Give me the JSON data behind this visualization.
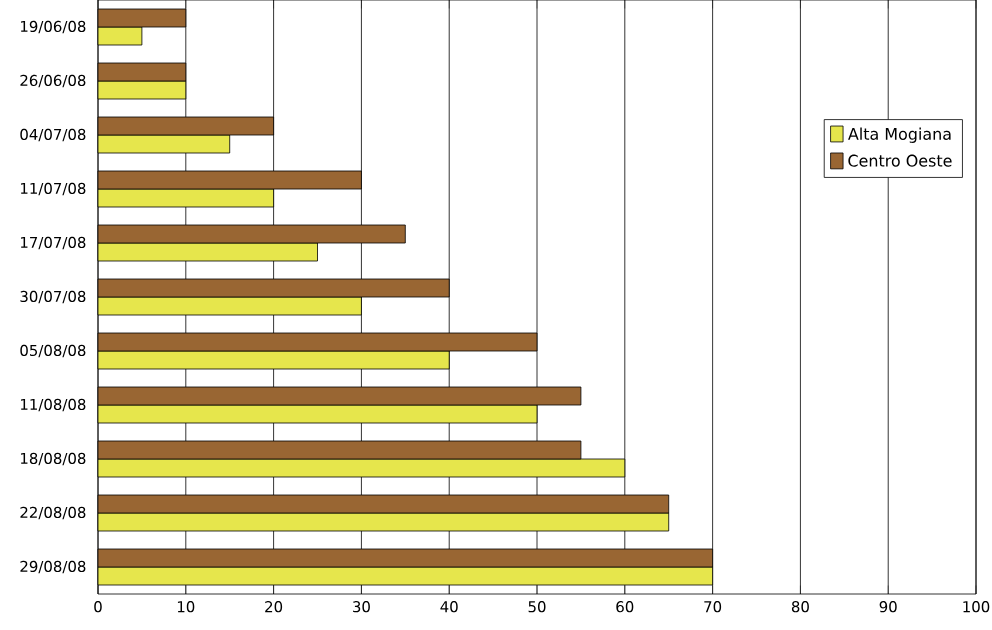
{
  "chart_data": {
    "type": "bar",
    "orientation": "horizontal",
    "categories": [
      "19/06/08",
      "26/06/08",
      "04/07/08",
      "11/07/08",
      "17/07/08",
      "30/07/08",
      "05/08/08",
      "11/08/08",
      "18/08/08",
      "22/08/08",
      "29/08/08"
    ],
    "series": [
      {
        "name": "Alta Mogiana",
        "color": "#e6e64c",
        "values": [
          5,
          10,
          15,
          20,
          25,
          30,
          40,
          50,
          60,
          65,
          70
        ]
      },
      {
        "name": "Centro Oeste",
        "color": "#996633",
        "values": [
          10,
          10,
          20,
          30,
          35,
          40,
          50,
          55,
          55,
          65,
          70
        ]
      }
    ],
    "xlim": [
      0,
      100
    ],
    "xticks": [
      0,
      10,
      20,
      30,
      40,
      50,
      60,
      70,
      80,
      90,
      100
    ],
    "grid": "x",
    "legend": "right"
  }
}
